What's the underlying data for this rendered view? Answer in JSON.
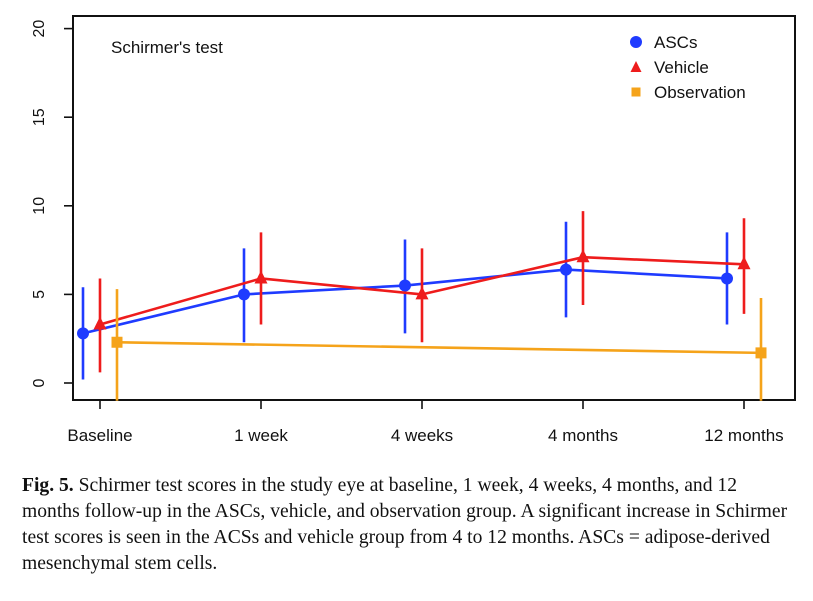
{
  "chart_data": {
    "type": "line",
    "title": "Schirmer's test",
    "xlabel": "",
    "ylabel": "",
    "categories": [
      "Baseline",
      "1 week",
      "4 weeks",
      "4 months",
      "12 months"
    ],
    "ylim": [
      -1,
      21
    ],
    "yticks": [
      0,
      5,
      10,
      15,
      20
    ],
    "legend_position": "top-right",
    "series": [
      {
        "name": "ASCs",
        "color": "#1f3bff",
        "marker": "circle",
        "values": [
          2.8,
          5.0,
          5.5,
          6.4,
          5.9
        ],
        "lower": [
          0.2,
          2.3,
          2.8,
          3.7,
          3.3
        ],
        "upper": [
          5.4,
          7.6,
          8.1,
          9.1,
          8.5
        ]
      },
      {
        "name": "Vehicle",
        "color": "#ee1c1c",
        "marker": "triangle",
        "values": [
          3.3,
          5.9,
          5.0,
          7.1,
          6.7
        ],
        "lower": [
          0.6,
          3.3,
          2.3,
          4.4,
          3.9
        ],
        "upper": [
          5.9,
          8.5,
          7.6,
          9.7,
          9.3
        ]
      },
      {
        "name": "Observation",
        "color": "#f5a31a",
        "marker": "square",
        "values": [
          2.3,
          null,
          null,
          null,
          1.7
        ],
        "lower": [
          -1.0,
          null,
          null,
          null,
          -1.0
        ],
        "upper": [
          5.3,
          null,
          null,
          null,
          4.8
        ]
      }
    ]
  },
  "caption": {
    "label": "Fig. 5.",
    "text": "Schirmer test scores in the study eye at baseline, 1 week, 4 weeks, 4 months, and 12 months follow-up in the ASCs, vehicle, and observation group. A significant increase in Schirmer test scores is seen in the ACSs and vehicle group from 4 to 12 months. ASCs = adipose-derived mesenchymal stem cells."
  }
}
